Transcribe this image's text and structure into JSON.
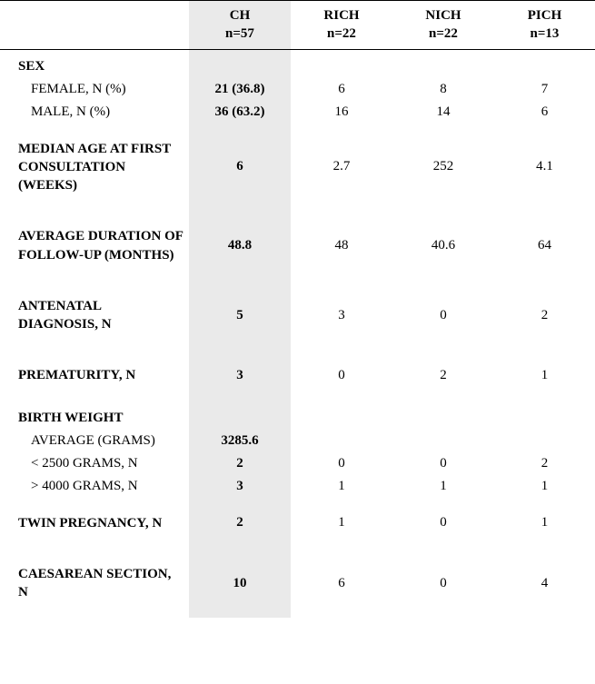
{
  "columns": {
    "ch": {
      "label1": "CH",
      "label2": "n=57"
    },
    "rich": {
      "label1": "RICH",
      "label2": "n=22"
    },
    "nich": {
      "label1": "NICH",
      "label2": "n=22"
    },
    "pich": {
      "label1": "PICH",
      "label2": "n=13"
    }
  },
  "sex": {
    "heading": "SEX",
    "female": {
      "label": "FEMALE, N (%)",
      "ch": "21 (36.8)",
      "rich": "6",
      "nich": "8",
      "pich": "7"
    },
    "male": {
      "label": "MALE, N (%)",
      "ch": "36 (63.2)",
      "rich": "16",
      "nich": "14",
      "pich": "6"
    }
  },
  "median_age": {
    "label": "MEDIAN AGE AT FIRST CONSULTATION (WEEKS)",
    "ch": "6",
    "rich": "2.7",
    "nich": "252",
    "pich": "4.1"
  },
  "followup": {
    "label": "AVERAGE DURATION OF FOLLOW-UP (MONTHS)",
    "ch": "48.8",
    "rich": "48",
    "nich": "40.6",
    "pich": "64"
  },
  "antenatal": {
    "label": "ANTENATAL DIAGNOSIS, N",
    "ch": "5",
    "rich": "3",
    "nich": "0",
    "pich": "2"
  },
  "prematurity": {
    "label": "PREMATURITY, N",
    "ch": "3",
    "rich": "0",
    "nich": "2",
    "pich": "1"
  },
  "birthweight": {
    "heading": "BIRTH WEIGHT",
    "average": {
      "label": "AVERAGE (GRAMS)",
      "ch": "3285.6",
      "rich": "",
      "nich": "",
      "pich": ""
    },
    "lt2500": {
      "label": "< 2500 GRAMS, N",
      "ch": "2",
      "rich": "0",
      "nich": "0",
      "pich": "2"
    },
    "gt4000": {
      "label": "> 4000 GRAMS, N",
      "ch": "3",
      "rich": "1",
      "nich": "1",
      "pich": "1"
    }
  },
  "twin": {
    "label": "TWIN PREGNANCY, N",
    "ch": "2",
    "rich": "1",
    "nich": "0",
    "pich": "1"
  },
  "caesarean": {
    "label": "CAESAREAN SECTION, N",
    "ch": "10",
    "rich": "6",
    "nich": "0",
    "pich": "4"
  }
}
